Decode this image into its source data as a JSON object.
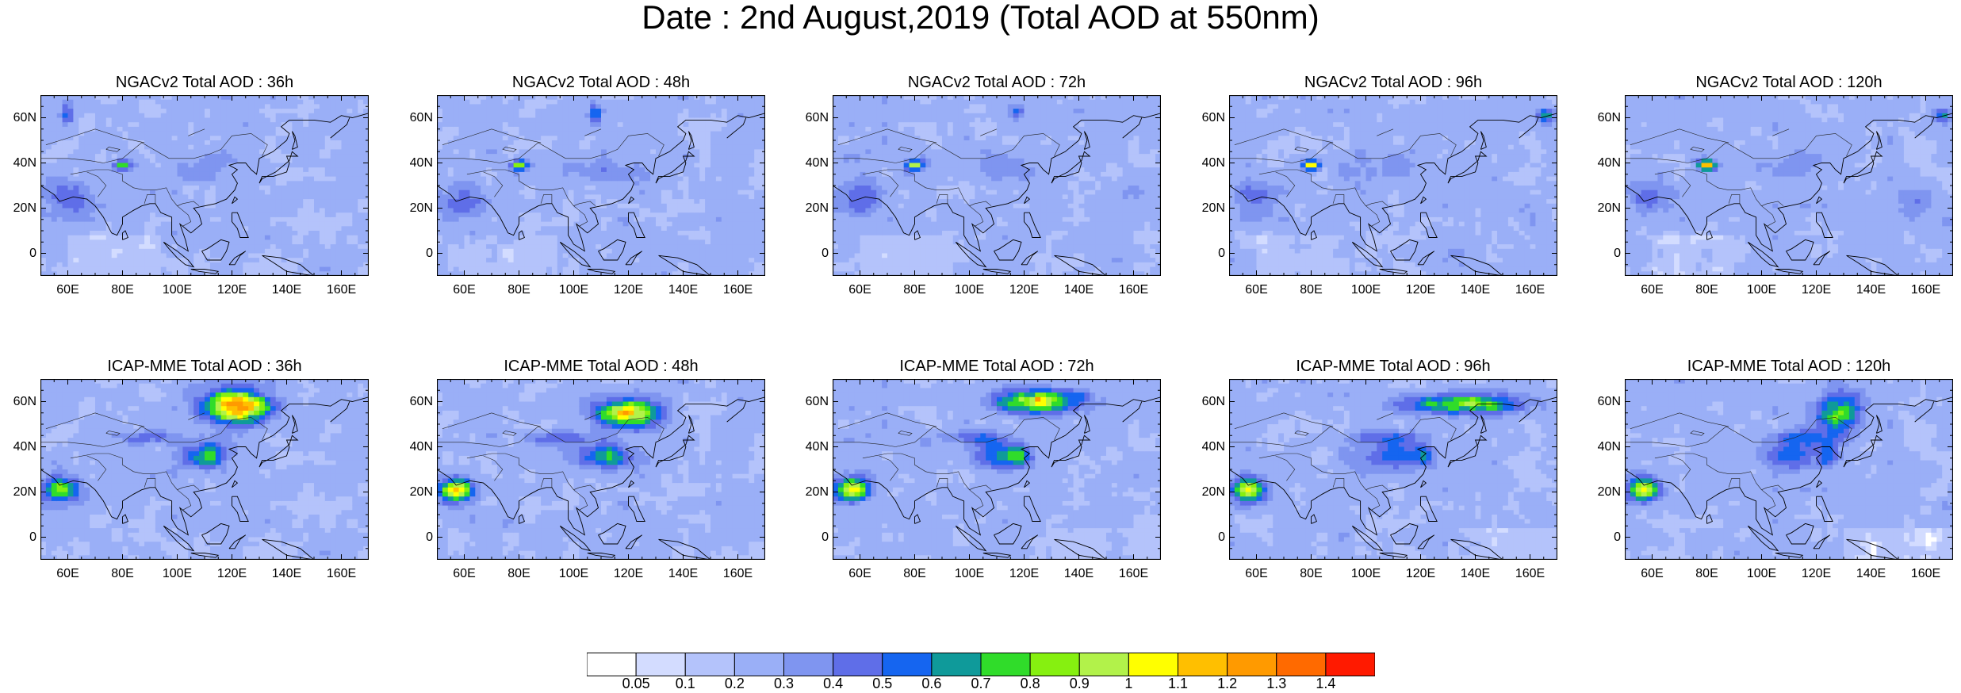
{
  "title": "Date : 2nd August,2019 (Total AOD at 550nm)",
  "panels": [
    {
      "title": "NGACv2 Total AOD : 36h",
      "model": "ngac",
      "lead": 36
    },
    {
      "title": "NGACv2 Total AOD : 48h",
      "model": "ngac",
      "lead": 48
    },
    {
      "title": "NGACv2 Total AOD : 72h",
      "model": "ngac",
      "lead": 72
    },
    {
      "title": "NGACv2 Total AOD : 96h",
      "model": "ngac",
      "lead": 96
    },
    {
      "title": "NGACv2 Total AOD : 120h",
      "model": "ngac",
      "lead": 120
    },
    {
      "title": "ICAP-MME Total AOD : 36h",
      "model": "icap",
      "lead": 36
    },
    {
      "title": "ICAP-MME Total AOD : 48h",
      "model": "icap",
      "lead": 48
    },
    {
      "title": "ICAP-MME Total AOD : 72h",
      "model": "icap",
      "lead": 72
    },
    {
      "title": "ICAP-MME Total AOD : 96h",
      "model": "icap",
      "lead": 96
    },
    {
      "title": "ICAP-MME Total AOD : 120h",
      "model": "icap",
      "lead": 120
    }
  ],
  "map_extent": {
    "lon_min": 50,
    "lon_max": 170,
    "lat_min": -10,
    "lat_max": 70
  },
  "xticks": [
    {
      "value": 60,
      "label": "60E"
    },
    {
      "value": 80,
      "label": "80E"
    },
    {
      "value": 100,
      "label": "100E"
    },
    {
      "value": 120,
      "label": "120E"
    },
    {
      "value": 140,
      "label": "140E"
    },
    {
      "value": 160,
      "label": "160E"
    }
  ],
  "yticks": [
    {
      "value": 60,
      "label": "60N"
    },
    {
      "value": 40,
      "label": "40N"
    },
    {
      "value": 20,
      "label": "20N"
    },
    {
      "value": 0,
      "label": "0"
    }
  ],
  "colorbar": {
    "labels": [
      "0.05",
      "0.1",
      "0.2",
      "0.3",
      "0.4",
      "0.5",
      "0.6",
      "0.7",
      "0.8",
      "0.9",
      "1",
      "1.1",
      "1.2",
      "1.3",
      "1.4"
    ],
    "colors": [
      "#ffffff",
      "#d3dcff",
      "#b4c3fb",
      "#9aaff7",
      "#7f95f0",
      "#5f6ee8",
      "#1565f0",
      "#0f9a9a",
      "#30dc2a",
      "#86f010",
      "#b2f24a",
      "#ffff00",
      "#ffbf00",
      "#ff9a00",
      "#ff6a00",
      "#ff1a00"
    ]
  }
}
